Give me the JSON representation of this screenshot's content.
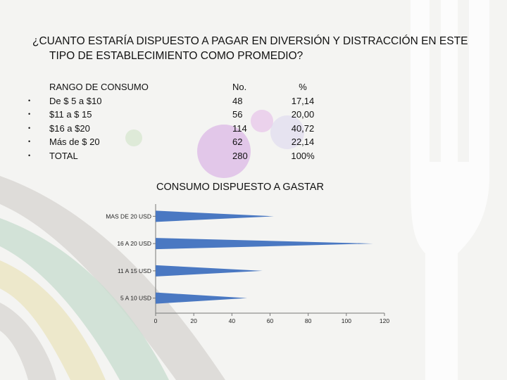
{
  "question": {
    "line1": "¿CUANTO ESTARÍA DISPUESTO A PAGAR EN DIVERSIÓN Y DISTRACCIÓN EN ESTE",
    "line2": "TIPO DE ESTABLECIMIENTO COMO PROMEDIO?"
  },
  "table": {
    "headers": [
      "RANGO DE CONSUMO",
      "No.",
      "%"
    ],
    "rows": [
      {
        "range": "De $ 5 a $10",
        "no": "48",
        "pct": "17,14"
      },
      {
        "range": "$11 a $ 15",
        "no": "56",
        "pct": "20,00"
      },
      {
        "range": "$16 a $20",
        "no": "114",
        "pct": "40,72"
      },
      {
        "range": "Más de $ 20",
        "no": "62",
        "pct": "22,14"
      },
      {
        "range": "TOTAL",
        "no": "280",
        "pct": "100%"
      }
    ]
  },
  "chart_data": {
    "type": "bar",
    "orientation": "horizontal",
    "title": "CONSUMO DISPUESTO A GASTAR",
    "categories": [
      "5 A 10 USD",
      "11 A 15 USD",
      "16 A 20 USD",
      "MAS DE 20 USD"
    ],
    "values": [
      48,
      56,
      114,
      62
    ],
    "xlim": [
      0,
      120
    ],
    "xticks": [
      "0",
      "20",
      "40",
      "60",
      "80",
      "100",
      "120"
    ],
    "grid": false,
    "bar_color": "#4a78c2"
  }
}
